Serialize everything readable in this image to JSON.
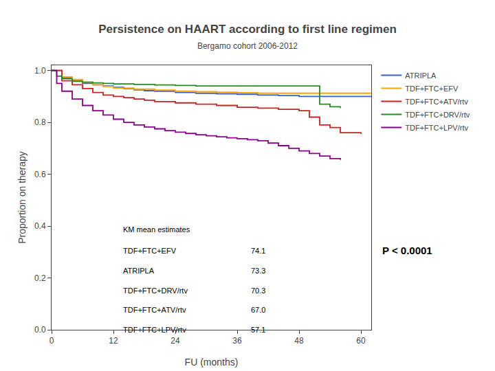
{
  "chart_data": {
    "type": "step",
    "title": "Persistence on HAART according to first line regimen",
    "subtitle": "Bergamo cohort 2006-2012",
    "x_label": "FU (months)",
    "y_label": "Proportion on therapy",
    "xlim": [
      0,
      62
    ],
    "ylim": [
      0.0,
      1.02
    ],
    "xticks": [
      0,
      12,
      24,
      36,
      48,
      60
    ],
    "yticks": [
      {
        "value": 0.0,
        "label": "0.0"
      },
      0.2,
      0.4,
      0.6,
      0.8,
      {
        "value": 1.0,
        "label": "1.0"
      }
    ],
    "grid": false,
    "legend": "right",
    "km_estimates": {
      "title": "KM mean estimates",
      "labels": [
        "TDF+FTC+EFV",
        "ATRIPLA",
        "TDF+FTC+DRV/rtv",
        "TDF+FTC+ATV/rtv",
        "TDF+FTC+LPV/rtv"
      ],
      "values": [
        74.1,
        73.3,
        70.3,
        67.0,
        57.1
      ],
      "value_labels": [
        "74.1",
        "73.3",
        "70.3",
        "67.0",
        "57.1"
      ]
    },
    "annotations": [
      "P < 0.0001"
    ],
    "series": [
      {
        "name": "ATRIPLA",
        "color": "#3a5fcd",
        "x": [
          0,
          2,
          4,
          6,
          8,
          10,
          12,
          14,
          16,
          18,
          20,
          24,
          28,
          32,
          36,
          40,
          44,
          48,
          52,
          56,
          60,
          62
        ],
        "values": [
          1.0,
          0.97,
          0.96,
          0.95,
          0.945,
          0.94,
          0.935,
          0.93,
          0.925,
          0.922,
          0.92,
          0.915,
          0.912,
          0.91,
          0.908,
          0.905,
          0.903,
          0.9,
          0.9,
          0.9,
          0.9,
          0.9
        ]
      },
      {
        "name": "TDF+FTC+EFV",
        "color": "#ffa500",
        "x": [
          0,
          2,
          4,
          6,
          8,
          10,
          12,
          16,
          20,
          24,
          28,
          32,
          36,
          40,
          44,
          48,
          52,
          56,
          60,
          62
        ],
        "values": [
          1.0,
          0.975,
          0.965,
          0.955,
          0.945,
          0.938,
          0.932,
          0.928,
          0.924,
          0.92,
          0.918,
          0.916,
          0.914,
          0.912,
          0.912,
          0.912,
          0.912,
          0.912,
          0.912,
          0.912
        ]
      },
      {
        "name": "TDF+FTC+ATV/rtv",
        "color": "#cc2222",
        "x": [
          0,
          2,
          4,
          6,
          8,
          10,
          12,
          14,
          16,
          18,
          20,
          24,
          28,
          32,
          36,
          40,
          44,
          48,
          50,
          52,
          54,
          56,
          60
        ],
        "values": [
          1.0,
          0.96,
          0.945,
          0.93,
          0.915,
          0.905,
          0.9,
          0.895,
          0.89,
          0.885,
          0.88,
          0.875,
          0.87,
          0.865,
          0.858,
          0.855,
          0.85,
          0.845,
          0.82,
          0.79,
          0.78,
          0.76,
          0.755
        ]
      },
      {
        "name": "TDF+FTC+DRV/rtv",
        "color": "#228b22",
        "x": [
          0,
          1,
          2,
          4,
          6,
          8,
          10,
          12,
          16,
          20,
          24,
          28,
          32,
          36,
          40,
          44,
          48,
          50,
          52,
          54,
          56
        ],
        "values": [
          1.0,
          0.978,
          0.968,
          0.958,
          0.955,
          0.952,
          0.95,
          0.948,
          0.946,
          0.944,
          0.942,
          0.94,
          0.94,
          0.94,
          0.94,
          0.94,
          0.94,
          0.94,
          0.87,
          0.86,
          0.855
        ]
      },
      {
        "name": "TDF+FTC+LPV/rtv",
        "color": "#8b008b",
        "x": [
          0,
          1,
          2,
          4,
          6,
          8,
          10,
          12,
          14,
          16,
          18,
          20,
          22,
          24,
          26,
          28,
          30,
          32,
          34,
          36,
          38,
          40,
          42,
          44,
          46,
          48,
          50,
          52,
          54,
          56
        ],
        "values": [
          1.0,
          0.95,
          0.92,
          0.89,
          0.865,
          0.845,
          0.828,
          0.812,
          0.8,
          0.79,
          0.782,
          0.775,
          0.768,
          0.762,
          0.757,
          0.752,
          0.748,
          0.744,
          0.74,
          0.737,
          0.733,
          0.729,
          0.72,
          0.71,
          0.7,
          0.69,
          0.68,
          0.67,
          0.66,
          0.655
        ]
      }
    ]
  }
}
